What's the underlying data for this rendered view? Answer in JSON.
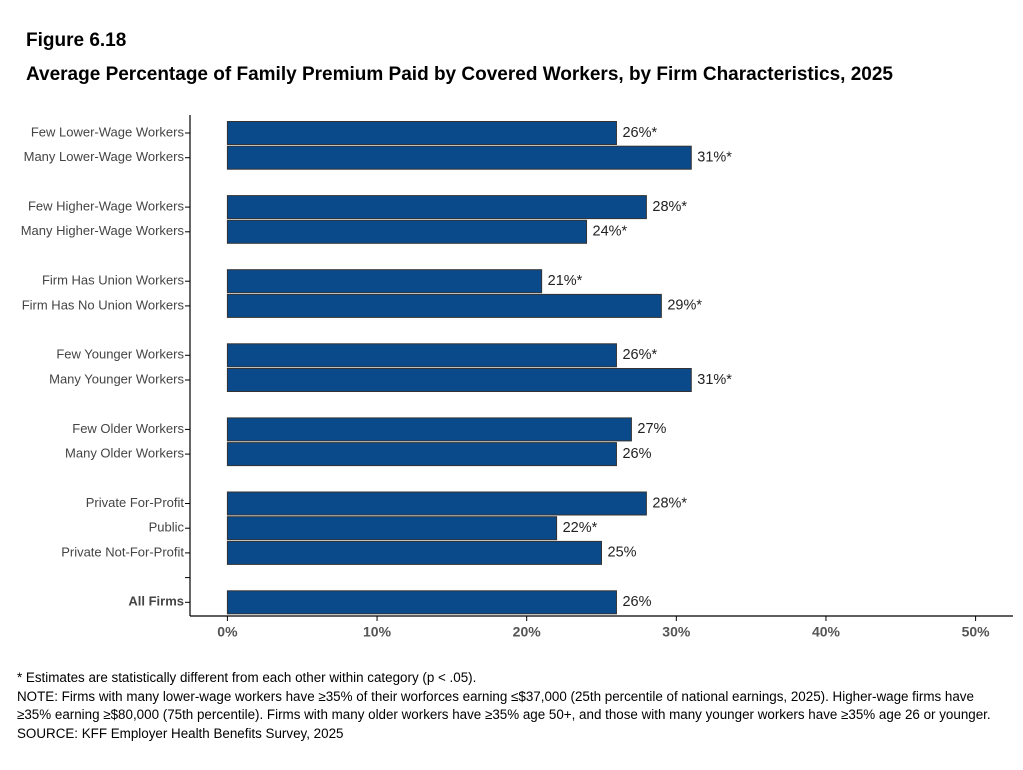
{
  "figure_label": "Figure 6.18",
  "chart_data": {
    "type": "bar",
    "orientation": "horizontal",
    "title": "Average Percentage of Family Premium Paid by Covered Workers, by Firm Characteristics, 2025",
    "groups": [
      {
        "categories": [
          "Few Lower-Wage Workers",
          "Many Lower-Wage Workers"
        ],
        "values": [
          26,
          31
        ],
        "value_labels": [
          "26%*",
          "31%*"
        ]
      },
      {
        "categories": [
          "Few Higher-Wage Workers",
          "Many Higher-Wage Workers"
        ],
        "values": [
          28,
          24
        ],
        "value_labels": [
          "28%*",
          "24%*"
        ]
      },
      {
        "categories": [
          "Firm Has Union Workers",
          "Firm Has No Union Workers"
        ],
        "values": [
          21,
          29
        ],
        "value_labels": [
          "21%*",
          "29%*"
        ]
      },
      {
        "categories": [
          "Few Younger Workers",
          "Many Younger Workers"
        ],
        "values": [
          26,
          31
        ],
        "value_labels": [
          "26%*",
          "31%*"
        ]
      },
      {
        "categories": [
          "Few Older Workers",
          "Many Older Workers"
        ],
        "values": [
          27,
          26
        ],
        "value_labels": [
          "27%",
          "26%"
        ]
      },
      {
        "categories": [
          "Private For-Profit",
          "Public",
          "Private Not-For-Profit"
        ],
        "values": [
          28,
          22,
          25
        ],
        "value_labels": [
          "28%*",
          "22%*",
          "25%"
        ]
      },
      {
        "categories": [
          null,
          "All Firms"
        ],
        "values": [
          null,
          26
        ],
        "value_labels": [
          null,
          "26%"
        ]
      }
    ],
    "color": "#0b4a8a",
    "xlim": [
      -2.5,
      52.5
    ],
    "xticks": [
      {
        "value": 0,
        "label": "0%"
      },
      {
        "value": 10,
        "label": "10%"
      },
      {
        "value": 20,
        "label": "20%"
      },
      {
        "value": 30,
        "label": "30%"
      },
      {
        "value": 40,
        "label": "40%"
      },
      {
        "value": 50,
        "label": "50%"
      }
    ]
  },
  "notes": [
    "* Estimates are statistically different from each other within category (p < .05).",
    "NOTE: Firms with many lower-wage workers have ≥35% of their worforces earning ≤$37,000 (25th percentile of national earnings, 2025). Higher-wage firms have ≥35% earning ≥$80,000 (75th percentile). Firms with many older workers have ≥35% age 50+, and those with many younger workers have ≥35% age 26 or younger.",
    "SOURCE: KFF Employer Health Benefits Survey, 2025"
  ]
}
